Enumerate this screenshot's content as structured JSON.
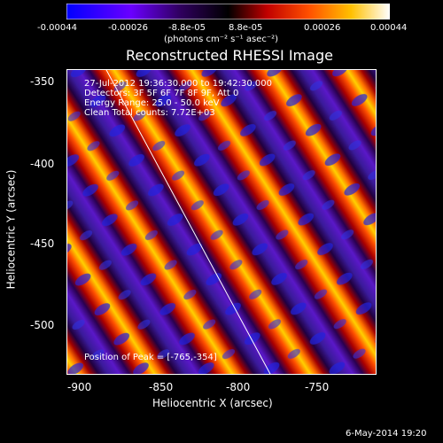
{
  "colorbar": {
    "ticks": [
      "-0.00044",
      "-0.00026",
      "-8.8e-05",
      "8.8e-05",
      "0.00026",
      "0.00044"
    ],
    "units_label": "(photons cm⁻² s⁻¹ asec⁻²)",
    "colors": [
      "#0000ff",
      "#8000ff",
      "#000000",
      "#ff0000",
      "#ff8800",
      "#ffff00",
      "#ffffff"
    ]
  },
  "plot": {
    "title": "Reconstructed RHESSI Image",
    "xlabel": "Heliocentric X (arcsec)",
    "ylabel": "Heliocentric Y (arcsec)",
    "x_ticks": [
      "-900",
      "-850",
      "-800",
      "-750"
    ],
    "y_ticks": [
      "-350",
      "-400",
      "-450",
      "-500"
    ],
    "xlim": [
      -910,
      -715
    ],
    "ylim": [
      -530,
      -340
    ],
    "info_lines": [
      "27-Jul-2012 19:36:30.000 to 19:42:30.000",
      "Detectors: 3F 5F 6F 7F 8F 9F, Att 0",
      "Energy Range: 25.0 - 50.0 keV",
      "Clean    Total counts: 7.72E+03"
    ],
    "peak_text": "Position of Peak = [-765,-354]"
  },
  "footer": {
    "date_stamp": "6-May-2014 19:20"
  }
}
